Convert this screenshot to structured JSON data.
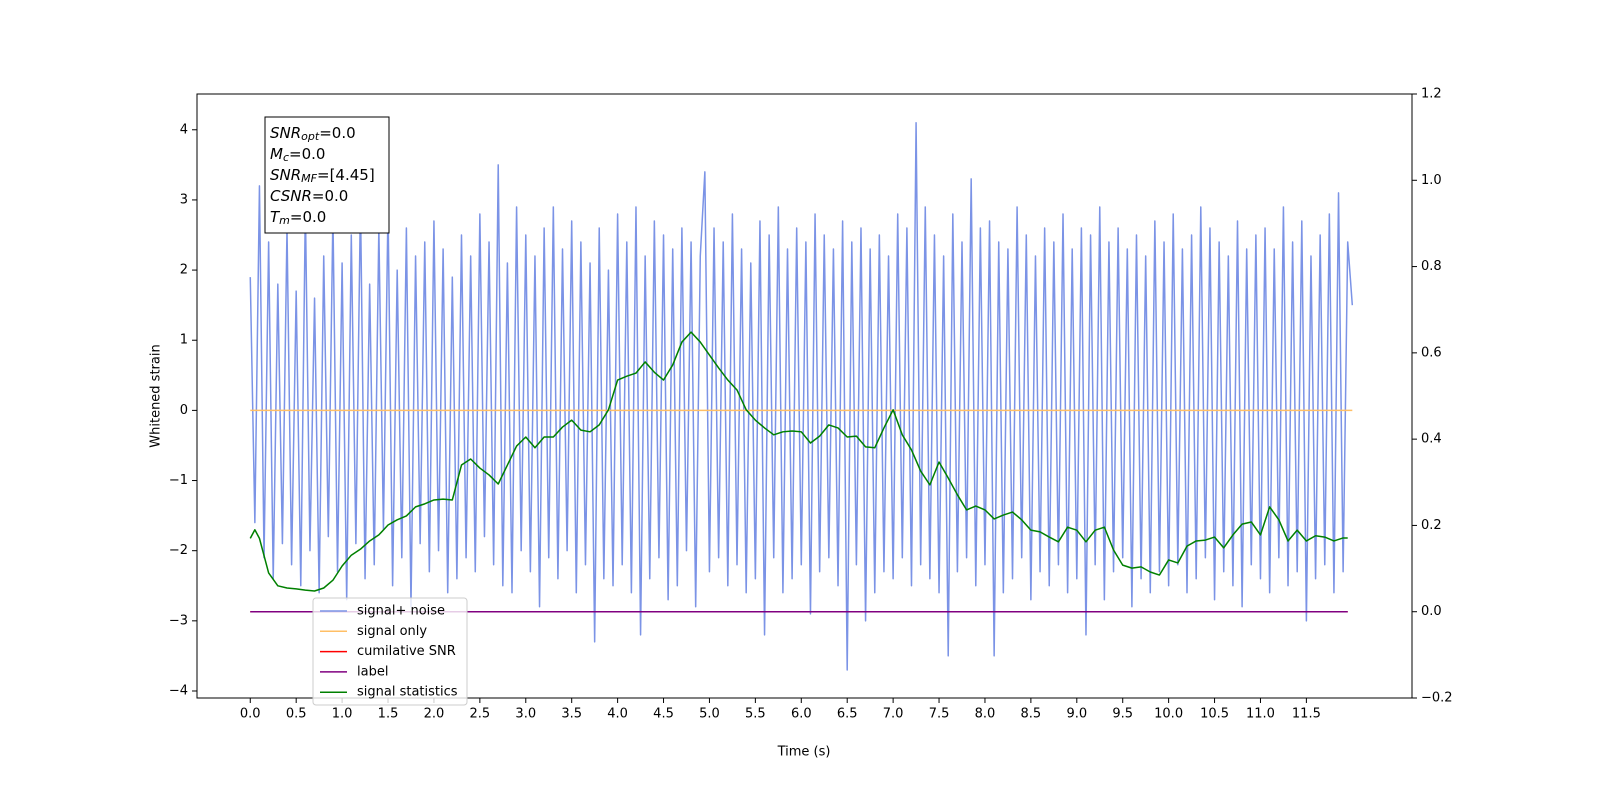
{
  "chart_data": {
    "type": "line",
    "x_label": "Time (s)",
    "y_label": "Whitened strain",
    "xlim": [
      -0.58,
      12.65
    ],
    "xticks": [
      {
        "value": 0,
        "label": "0.0"
      },
      {
        "value": 0.5,
        "label": "0.5"
      },
      {
        "value": 1,
        "label": "1.0"
      },
      {
        "value": 1.5,
        "label": "1.5"
      },
      {
        "value": 2,
        "label": "2.0"
      },
      {
        "value": 2.5,
        "label": "2.5"
      },
      {
        "value": 3,
        "label": "3.0"
      },
      {
        "value": 3.5,
        "label": "3.5"
      },
      {
        "value": 4,
        "label": "4.0"
      },
      {
        "value": 4.5,
        "label": "4.5"
      },
      {
        "value": 5,
        "label": "5.0"
      },
      {
        "value": 5.5,
        "label": "5.5"
      },
      {
        "value": 6,
        "label": "6.0"
      },
      {
        "value": 6.5,
        "label": "6.5"
      },
      {
        "value": 7,
        "label": "7.0"
      },
      {
        "value": 7.5,
        "label": "7.5"
      },
      {
        "value": 8,
        "label": "8.0"
      },
      {
        "value": 8.5,
        "label": "8.5"
      },
      {
        "value": 9,
        "label": "9.0"
      },
      {
        "value": 9.5,
        "label": "9.5"
      },
      {
        "value": 10,
        "label": "10.0"
      },
      {
        "value": 10.5,
        "label": "10.5"
      },
      {
        "value": 11,
        "label": "11.0"
      },
      {
        "value": 11.5,
        "label": "11.5"
      }
    ],
    "ylim": [
      -4.1,
      4.51
    ],
    "yticks": [
      {
        "value": -4,
        "label": "−4"
      },
      {
        "value": -3,
        "label": "−3"
      },
      {
        "value": -2,
        "label": "−2"
      },
      {
        "value": -1,
        "label": "−1"
      },
      0,
      1,
      2,
      3,
      4
    ],
    "y2lim": [
      -0.2,
      1.2
    ],
    "y2ticks": [
      {
        "value": -0.2,
        "label": "−0.2"
      },
      {
        "value": 0,
        "label": "0.0"
      },
      0.2,
      0.4,
      0.6,
      0.8,
      {
        "value": 1,
        "label": "1.0"
      },
      {
        "value": 1.2,
        "label": "1.2"
      }
    ],
    "annotation": {
      "lines": [
        {
          "text": "SNR",
          "subscript": "opt",
          "value": "=0.0"
        },
        {
          "text": "M",
          "subscript": "c",
          "value": "=0.0"
        },
        {
          "text": "SNR",
          "subscript": "MF",
          "value": "=[4.45]"
        },
        {
          "text": "CSNR",
          "subscript": "",
          "value": "=0.0"
        },
        {
          "text": "T",
          "subscript": "m",
          "value": "=0.0"
        }
      ]
    },
    "x": [
      0,
      0.05,
      0.1,
      0.15,
      0.2,
      0.25,
      0.3,
      0.35,
      0.4,
      0.45,
      0.5,
      0.55,
      0.6,
      0.65,
      0.7,
      0.75,
      0.8,
      0.85,
      0.9,
      0.95,
      1,
      1.05,
      1.1,
      1.15,
      1.2,
      1.25,
      1.3,
      1.35,
      1.4,
      1.45,
      1.5,
      1.55,
      1.6,
      1.65,
      1.7,
      1.75,
      1.8,
      1.85,
      1.9,
      1.95,
      2,
      2.05,
      2.1,
      2.15,
      2.2,
      2.25,
      2.3,
      2.35,
      2.4,
      2.45,
      2.5,
      2.55,
      2.6,
      2.65,
      2.7,
      2.75,
      2.8,
      2.85,
      2.9,
      2.95,
      3,
      3.05,
      3.1,
      3.15,
      3.2,
      3.25,
      3.3,
      3.35,
      3.4,
      3.45,
      3.5,
      3.55,
      3.6,
      3.65,
      3.7,
      3.75,
      3.8,
      3.85,
      3.9,
      3.95,
      4,
      4.05,
      4.1,
      4.15,
      4.2,
      4.25,
      4.3,
      4.35,
      4.4,
      4.45,
      4.5,
      4.55,
      4.6,
      4.65,
      4.7,
      4.75,
      4.8,
      4.85,
      4.9,
      4.95,
      5,
      5.05,
      5.1,
      5.15,
      5.2,
      5.25,
      5.3,
      5.35,
      5.4,
      5.45,
      5.5,
      5.55,
      5.6,
      5.65,
      5.7,
      5.75,
      5.8,
      5.85,
      5.9,
      5.95,
      6,
      6.05,
      6.1,
      6.15,
      6.2,
      6.25,
      6.3,
      6.35,
      6.4,
      6.45,
      6.5,
      6.55,
      6.6,
      6.65,
      6.7,
      6.75,
      6.8,
      6.85,
      6.9,
      6.95,
      7,
      7.05,
      7.1,
      7.15,
      7.2,
      7.25,
      7.3,
      7.35,
      7.4,
      7.45,
      7.5,
      7.55,
      7.6,
      7.65,
      7.7,
      7.75,
      7.8,
      7.85,
      7.9,
      7.95,
      8,
      8.05,
      8.1,
      8.15,
      8.2,
      8.25,
      8.3,
      8.35,
      8.4,
      8.45,
      8.5,
      8.55,
      8.6,
      8.65,
      8.7,
      8.75,
      8.8,
      8.85,
      8.9,
      8.95,
      9,
      9.05,
      9.1,
      9.15,
      9.2,
      9.25,
      9.3,
      9.35,
      9.4,
      9.45,
      9.5,
      9.55,
      9.6,
      9.65,
      9.7,
      9.75,
      9.8,
      9.85,
      9.9,
      9.95,
      10,
      10.05,
      10.1,
      10.15,
      10.2,
      10.25,
      10.3,
      10.35,
      10.4,
      10.45,
      10.5,
      10.55,
      10.6,
      10.65,
      10.7,
      10.75,
      10.8,
      10.85,
      10.9,
      10.95,
      11,
      11.05,
      11.1,
      11.15,
      11.2,
      11.25,
      11.3,
      11.35,
      11.4,
      11.45,
      11.5,
      11.55,
      11.6,
      11.65,
      11.7,
      11.75,
      11.8,
      11.85,
      11.9,
      11.95,
      12
    ],
    "series": [
      {
        "name": "signal+ noise",
        "color": "#7b93e6",
        "values": [
          1.9,
          -1.6,
          3.2,
          -2.1,
          2.4,
          -2.4,
          1.8,
          -1.9,
          2.6,
          -2.2,
          1.7,
          -2.5,
          2.9,
          -2.0,
          1.6,
          -2.6,
          2.2,
          -1.8,
          2.8,
          -2.3,
          2.1,
          -2.7,
          2.5,
          -1.9,
          3.0,
          -2.4,
          1.8,
          -2.2,
          2.6,
          -1.7,
          2.9,
          -2.5,
          2.0,
          -2.1,
          2.6,
          -2.8,
          2.2,
          -1.9,
          2.4,
          -2.3,
          2.7,
          -2.0,
          2.3,
          -2.6,
          1.9,
          -2.4,
          2.5,
          -2.1,
          2.2,
          -2.3,
          2.8,
          -1.8,
          2.4,
          -2.2,
          3.5,
          -2.5,
          2.1,
          -2.6,
          2.9,
          -2.0,
          2.5,
          -2.3,
          2.2,
          -2.8,
          2.6,
          -2.1,
          2.9,
          -2.4,
          2.3,
          -2.0,
          2.7,
          -2.6,
          2.4,
          -2.2,
          2.1,
          -3.3,
          2.6,
          -2.4,
          2.0,
          -2.5,
          2.8,
          -2.2,
          2.4,
          -2.6,
          2.9,
          -3.2,
          2.2,
          -2.4,
          2.7,
          -2.1,
          2.5,
          -2.7,
          2.3,
          -2.5,
          2.6,
          -2.0,
          2.4,
          -2.8,
          2.2,
          3.4,
          -2.3,
          2.6,
          -2.1,
          2.4,
          -2.5,
          2.8,
          -2.2,
          2.3,
          -2.6,
          2.1,
          -2.4,
          2.7,
          -3.2,
          2.5,
          -2.1,
          2.9,
          -2.6,
          2.3,
          -2.4,
          2.6,
          -2.2,
          2.4,
          -2.9,
          2.8,
          -2.3,
          2.5,
          -2.1,
          2.3,
          -2.5,
          2.7,
          -3.7,
          2.4,
          -2.2,
          2.6,
          -3.0,
          2.3,
          -2.6,
          2.5,
          -2.3,
          2.2,
          -2.4,
          2.8,
          -2.1,
          2.6,
          -2.5,
          4.1,
          -2.2,
          2.9,
          -2.4,
          2.5,
          -2.6,
          2.2,
          -3.5,
          2.8,
          -2.3,
          2.4,
          -2.1,
          3.3,
          -2.5,
          2.6,
          -2.2,
          2.7,
          -3.5,
          2.4,
          -2.6,
          2.3,
          -2.4,
          2.9,
          -2.1,
          2.5,
          -2.7,
          2.2,
          -2.3,
          2.6,
          -2.5,
          2.4,
          -2.2,
          2.8,
          -2.6,
          2.3,
          -2.4,
          2.6,
          -3.2,
          2.5,
          -2.2,
          2.9,
          -2.7,
          2.4,
          -2.3,
          2.6,
          -2.1,
          2.3,
          -2.8,
          2.5,
          -2.4,
          2.2,
          -2.6,
          2.7,
          -2.3,
          2.4,
          -2.5,
          2.8,
          -2.2,
          2.3,
          -2.6,
          2.5,
          -2.4,
          2.9,
          -2.1,
          2.6,
          -2.7,
          2.4,
          -2.3,
          2.2,
          -2.5,
          2.7,
          -2.8,
          2.3,
          -2.2,
          2.5,
          -2.4,
          2.6,
          -2.6,
          2.3,
          -2.1,
          2.9,
          -2.5,
          2.4,
          -2.3,
          2.7,
          -3.0,
          2.2,
          -2.4,
          2.5,
          -2.2,
          2.8,
          -2.6,
          3.1,
          -2.3,
          2.4,
          1.5
        ]
      },
      {
        "name": "signal only",
        "color": "#ffbf66",
        "x": [
          0,
          12
        ],
        "values": [
          0,
          0
        ]
      },
      {
        "name": "cumilative SNR",
        "color": "#ff0000",
        "axis": "y2",
        "x": [
          0,
          11.95
        ],
        "values": [
          0,
          0
        ]
      },
      {
        "name": "label",
        "color": "#800080",
        "axis": "y2",
        "x": [
          0,
          11.95
        ],
        "values": [
          0,
          0
        ]
      },
      {
        "name": "signal statistics",
        "color": "#008000",
        "axis": "y2",
        "x": [
          0,
          0.05,
          0.1,
          0.2,
          0.3,
          0.4,
          0.5,
          0.6,
          0.7,
          0.8,
          0.9,
          1,
          1.1,
          1.2,
          1.3,
          1.4,
          1.5,
          1.6,
          1.7,
          1.8,
          1.9,
          2,
          2.1,
          2.2,
          2.3,
          2.4,
          2.5,
          2.6,
          2.7,
          2.8,
          2.9,
          3,
          3.1,
          3.2,
          3.3,
          3.4,
          3.5,
          3.6,
          3.7,
          3.8,
          3.9,
          4,
          4.1,
          4.2,
          4.3,
          4.4,
          4.5,
          4.6,
          4.7,
          4.8,
          4.9,
          5,
          5.1,
          5.2,
          5.3,
          5.4,
          5.5,
          5.6,
          5.7,
          5.8,
          5.9,
          6,
          6.1,
          6.2,
          6.3,
          6.4,
          6.5,
          6.6,
          6.7,
          6.8,
          6.9,
          7,
          7.1,
          7.2,
          7.3,
          7.4,
          7.5,
          7.6,
          7.7,
          7.8,
          7.9,
          8,
          8.1,
          8.2,
          8.3,
          8.4,
          8.5,
          8.6,
          8.7,
          8.8,
          8.9,
          9,
          9.1,
          9.2,
          9.3,
          9.4,
          9.5,
          9.6,
          9.7,
          9.8,
          9.9,
          10,
          10.1,
          10.2,
          10.3,
          10.4,
          10.5,
          10.6,
          10.7,
          10.8,
          10.9,
          11,
          11.1,
          11.2,
          11.3,
          11.4,
          11.5,
          11.6,
          11.7,
          11.8,
          11.9,
          11.95
        ],
        "values": [
          0.17,
          0.19,
          0.17,
          0.09,
          0.06,
          0.055,
          0.053,
          0.05,
          0.048,
          0.055,
          0.073,
          0.106,
          0.131,
          0.145,
          0.164,
          0.178,
          0.201,
          0.213,
          0.222,
          0.243,
          0.25,
          0.259,
          0.261,
          0.259,
          0.34,
          0.354,
          0.333,
          0.317,
          0.296,
          0.34,
          0.384,
          0.405,
          0.38,
          0.405,
          0.405,
          0.428,
          0.444,
          0.421,
          0.417,
          0.433,
          0.468,
          0.537,
          0.546,
          0.553,
          0.579,
          0.555,
          0.537,
          0.572,
          0.625,
          0.648,
          0.625,
          0.595,
          0.565,
          0.537,
          0.514,
          0.468,
          0.444,
          0.426,
          0.41,
          0.417,
          0.419,
          0.417,
          0.391,
          0.407,
          0.433,
          0.426,
          0.405,
          0.407,
          0.382,
          0.38,
          0.426,
          0.468,
          0.41,
          0.375,
          0.326,
          0.294,
          0.347,
          0.31,
          0.271,
          0.236,
          0.245,
          0.236,
          0.215,
          0.224,
          0.231,
          0.213,
          0.189,
          0.185,
          0.173,
          0.162,
          0.196,
          0.189,
          0.162,
          0.189,
          0.196,
          0.143,
          0.108,
          0.101,
          0.104,
          0.092,
          0.085,
          0.12,
          0.113,
          0.152,
          0.164,
          0.166,
          0.173,
          0.148,
          0.178,
          0.203,
          0.208,
          0.178,
          0.243,
          0.213,
          0.164,
          0.189,
          0.164,
          0.176,
          0.173,
          0.164,
          0.171,
          0.171
        ]
      }
    ]
  }
}
